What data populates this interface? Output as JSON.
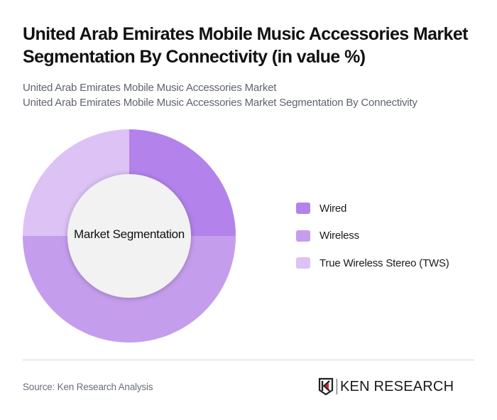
{
  "header": {
    "title": "United Arab Emirates Mobile Music Accessories Market Segmentation By Connectivity (in value %)",
    "subtitle_line1": "United Arab Emirates Mobile Music Accessories Market",
    "subtitle_line2": "United Arab Emirates Mobile Music Accessories Market Segmentation By Connectivity"
  },
  "chart": {
    "center_label": "Market Segmentation"
  },
  "legend": {
    "items": [
      {
        "label": "Wired",
        "color": "#b382ea"
      },
      {
        "label": "Wireless",
        "color": "#c59ded"
      },
      {
        "label": "True Wireless Stereo (TWS)",
        "color": "#dcc2f5"
      }
    ]
  },
  "footer": {
    "source": "Source: Ken Research Analysis",
    "logo_text": "KEN RESEARCH"
  },
  "chart_data": {
    "type": "pie",
    "subtype": "donut",
    "title": "United Arab Emirates Mobile Music Accessories Market Segmentation By Connectivity (in value %)",
    "center_label": "Market Segmentation",
    "categories": [
      "Wired",
      "Wireless",
      "True Wireless Stereo (TWS)"
    ],
    "values": [
      25,
      50,
      25
    ],
    "colors": [
      "#b382ea",
      "#c59ded",
      "#dcc2f5"
    ],
    "legend_position": "right",
    "data_labels": false
  }
}
